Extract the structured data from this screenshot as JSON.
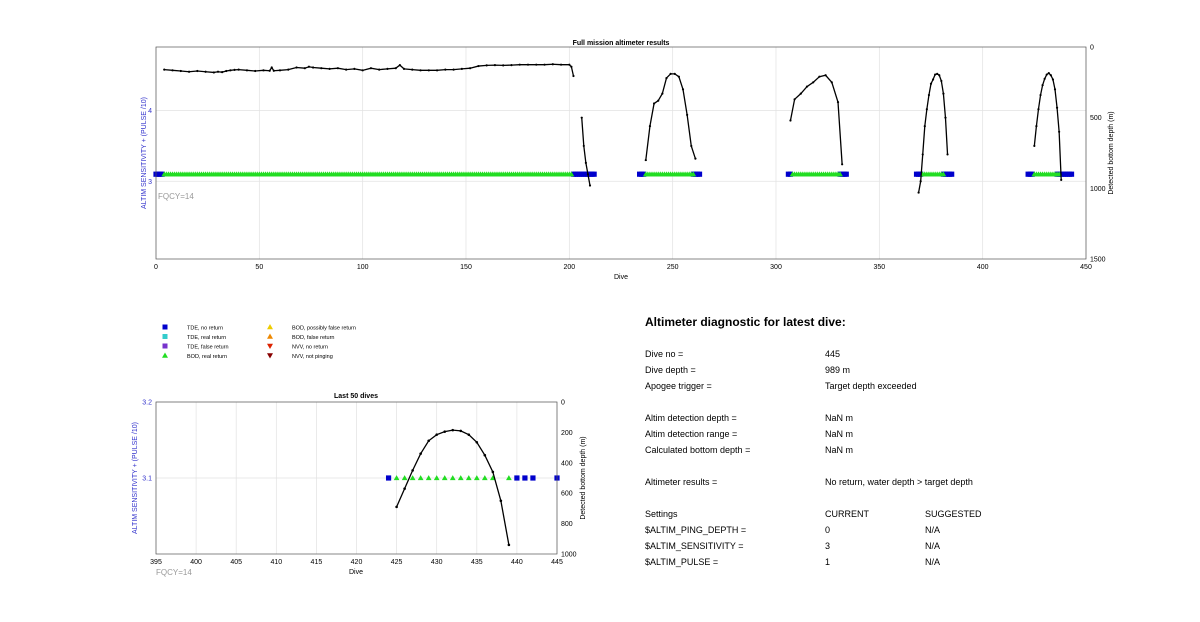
{
  "colors": {
    "tde_no_return": "#0000cc",
    "tde_real_return": "#33cccc",
    "tde_false_return": "#7733cc",
    "bod_real_return": "#22dd22",
    "bod_possibly_false": "#eecc00",
    "bod_false_return": "#ee8800",
    "nvv_no_return": "#dd2200",
    "nvv_not_pinging": "#880000",
    "left_axis": "#3333cc",
    "fqcy": "#999999",
    "depth_line": "#000000"
  },
  "legend": [
    {
      "label": "TDE, no return",
      "marker": "square",
      "color": "#0000cc"
    },
    {
      "label": "TDE, real return",
      "marker": "square",
      "color": "#33cccc"
    },
    {
      "label": "TDE, false return",
      "marker": "square",
      "color": "#7733cc"
    },
    {
      "label": "BOD, real return",
      "marker": "triangle-up",
      "color": "#22dd22"
    },
    {
      "label": "BOD, possibly false return",
      "marker": "triangle-up",
      "color": "#eecc00"
    },
    {
      "label": "BOD, false return",
      "marker": "triangle-up",
      "color": "#ee8800"
    },
    {
      "label": "NVV, no return",
      "marker": "triangle-down",
      "color": "#dd2200"
    },
    {
      "label": "NVV, not pinging",
      "marker": "triangle-down",
      "color": "#880000"
    }
  ],
  "chart_data": [
    {
      "type": "scatter",
      "title": "Full mission altimeter results",
      "xlabel": "Dive",
      "ylabel": "ALTIM SENSITIVITY + (PULSE /10)",
      "y2label": "Detected bottom depth (m)",
      "annotation": "FQCY=14",
      "xlim": [
        0,
        450
      ],
      "ylim": [
        1.9,
        4.9
      ],
      "y2lim": [
        0,
        1500
      ],
      "y2_reversed": true,
      "xticks": [
        0,
        50,
        100,
        150,
        200,
        250,
        300,
        350,
        400,
        450
      ],
      "yticks": [
        3,
        4
      ],
      "y2ticks": [
        0,
        500,
        1000,
        1500
      ],
      "grid": true,
      "sensitivity_value": 3.1,
      "tde_no_return_ranges": [
        [
          0,
          3
        ],
        [
          202,
          212
        ],
        [
          234,
          236
        ],
        [
          260,
          263
        ],
        [
          306,
          307
        ],
        [
          331,
          334
        ],
        [
          368,
          370
        ],
        [
          381,
          385
        ],
        [
          422,
          424
        ],
        [
          436,
          443
        ]
      ],
      "bod_real_return_ranges": [
        [
          4,
          201
        ],
        [
          237,
          260
        ],
        [
          308,
          331
        ],
        [
          371,
          381
        ],
        [
          425,
          437
        ]
      ],
      "depth_series": [
        {
          "x": [
            4,
            8,
            12,
            16,
            20,
            24,
            28,
            30,
            32,
            34,
            36,
            38,
            40,
            44,
            48,
            52,
            55,
            56,
            57,
            60,
            64,
            68,
            72,
            74,
            76,
            80,
            84,
            88,
            92,
            96,
            100,
            104,
            108,
            112,
            116,
            118,
            120,
            124,
            128,
            132,
            136,
            140,
            144,
            148,
            152,
            156,
            160,
            164,
            168,
            172,
            176,
            180,
            184,
            188,
            192,
            196,
            200,
            201,
            202
          ],
          "y": [
            160,
            165,
            170,
            175,
            170,
            175,
            180,
            175,
            178,
            170,
            165,
            162,
            160,
            165,
            170,
            165,
            168,
            145,
            168,
            165,
            160,
            145,
            150,
            140,
            145,
            150,
            155,
            150,
            160,
            155,
            165,
            150,
            160,
            155,
            150,
            128,
            155,
            160,
            165,
            165,
            165,
            160,
            160,
            155,
            150,
            135,
            130,
            128,
            130,
            128,
            125,
            125,
            125,
            125,
            122,
            125,
            125,
            140,
            205
          ]
        },
        {
          "x": [
            206,
            207,
            208,
            209,
            210
          ],
          "y": [
            500,
            700,
            820,
            900,
            980
          ]
        },
        {
          "x": [
            237,
            239,
            241,
            243,
            245,
            247,
            249,
            251,
            253,
            255,
            257,
            259,
            261
          ],
          "y": [
            800,
            560,
            400,
            380,
            330,
            220,
            190,
            190,
            210,
            300,
            480,
            700,
            790
          ]
        },
        {
          "x": [
            307,
            309,
            312,
            315,
            318,
            321,
            324,
            327,
            330,
            332
          ],
          "y": [
            520,
            370,
            330,
            280,
            250,
            210,
            200,
            250,
            390,
            830
          ]
        },
        {
          "x": [
            369,
            370,
            371,
            372,
            373,
            374,
            375,
            376,
            377,
            378,
            379,
            380,
            381,
            382,
            383
          ],
          "y": [
            1030,
            950,
            760,
            560,
            440,
            340,
            260,
            230,
            195,
            190,
            200,
            240,
            330,
            500,
            760
          ]
        },
        {
          "x": [
            425,
            426,
            427,
            428,
            429,
            430,
            431,
            432,
            433,
            434,
            435,
            436,
            437,
            438
          ],
          "y": [
            700,
            560,
            440,
            340,
            270,
            225,
            195,
            185,
            200,
            230,
            300,
            430,
            600,
            940
          ]
        }
      ]
    },
    {
      "type": "scatter",
      "title": "Last 50 dives",
      "xlabel": "Dive",
      "ylabel": "ALTIM SENSITIVITY + (PULSE /10)",
      "y2label": "Detected bottom depth (m)",
      "annotation": "FQCY=14",
      "xlim": [
        395,
        445
      ],
      "ylim": [
        3.0,
        3.2
      ],
      "y2lim": [
        0,
        1000
      ],
      "y2_reversed": true,
      "xticks": [
        395,
        400,
        405,
        410,
        415,
        420,
        425,
        430,
        435,
        440,
        445
      ],
      "yticks": [
        3.1,
        3.2
      ],
      "y2ticks": [
        0,
        200,
        400,
        600,
        800,
        1000
      ],
      "grid": true,
      "sensitivity_value": 3.1,
      "tde_no_return_dives": [
        424,
        440,
        441,
        442,
        445
      ],
      "bod_real_return_dives": [
        425,
        426,
        427,
        428,
        429,
        430,
        431,
        432,
        433,
        434,
        435,
        436,
        437,
        439
      ],
      "depth_series": [
        {
          "x": [
            425,
            426,
            427,
            428,
            429,
            430,
            431,
            432,
            433,
            434,
            435,
            436,
            437,
            438,
            439
          ],
          "y": [
            690,
            570,
            450,
            340,
            255,
            215,
            195,
            185,
            190,
            215,
            265,
            350,
            460,
            650,
            940
          ]
        }
      ]
    }
  ],
  "diagnostic": {
    "title": "Altimeter diagnostic for latest dive:",
    "dive_no_label": "Dive no =",
    "dive_no": "445",
    "dive_depth_label": "Dive depth =",
    "dive_depth": "989 m",
    "apogee_label": "Apogee trigger =",
    "apogee": "Target depth exceeded",
    "detect_depth_label": "Altim detection depth =",
    "detect_depth": "NaN m",
    "detect_range_label": "Altim detection range =",
    "detect_range": "NaN m",
    "calc_bottom_label": "Calculated bottom depth =",
    "calc_bottom": "NaN m",
    "results_label": "Altimeter results =",
    "results": "No return, water depth > target depth",
    "settings_label": "Settings",
    "current_label": "CURRENT",
    "suggested_label": "SUGGESTED",
    "ping_depth_label": "$ALTIM_PING_DEPTH =",
    "ping_depth_current": "0",
    "ping_depth_suggested": "N/A",
    "sensitivity_label": "$ALTIM_SENSITIVITY =",
    "sensitivity_current": "3",
    "sensitivity_suggested": "N/A",
    "pulse_label": "$ALTIM_PULSE =",
    "pulse_current": "1",
    "pulse_suggested": "N/A"
  }
}
